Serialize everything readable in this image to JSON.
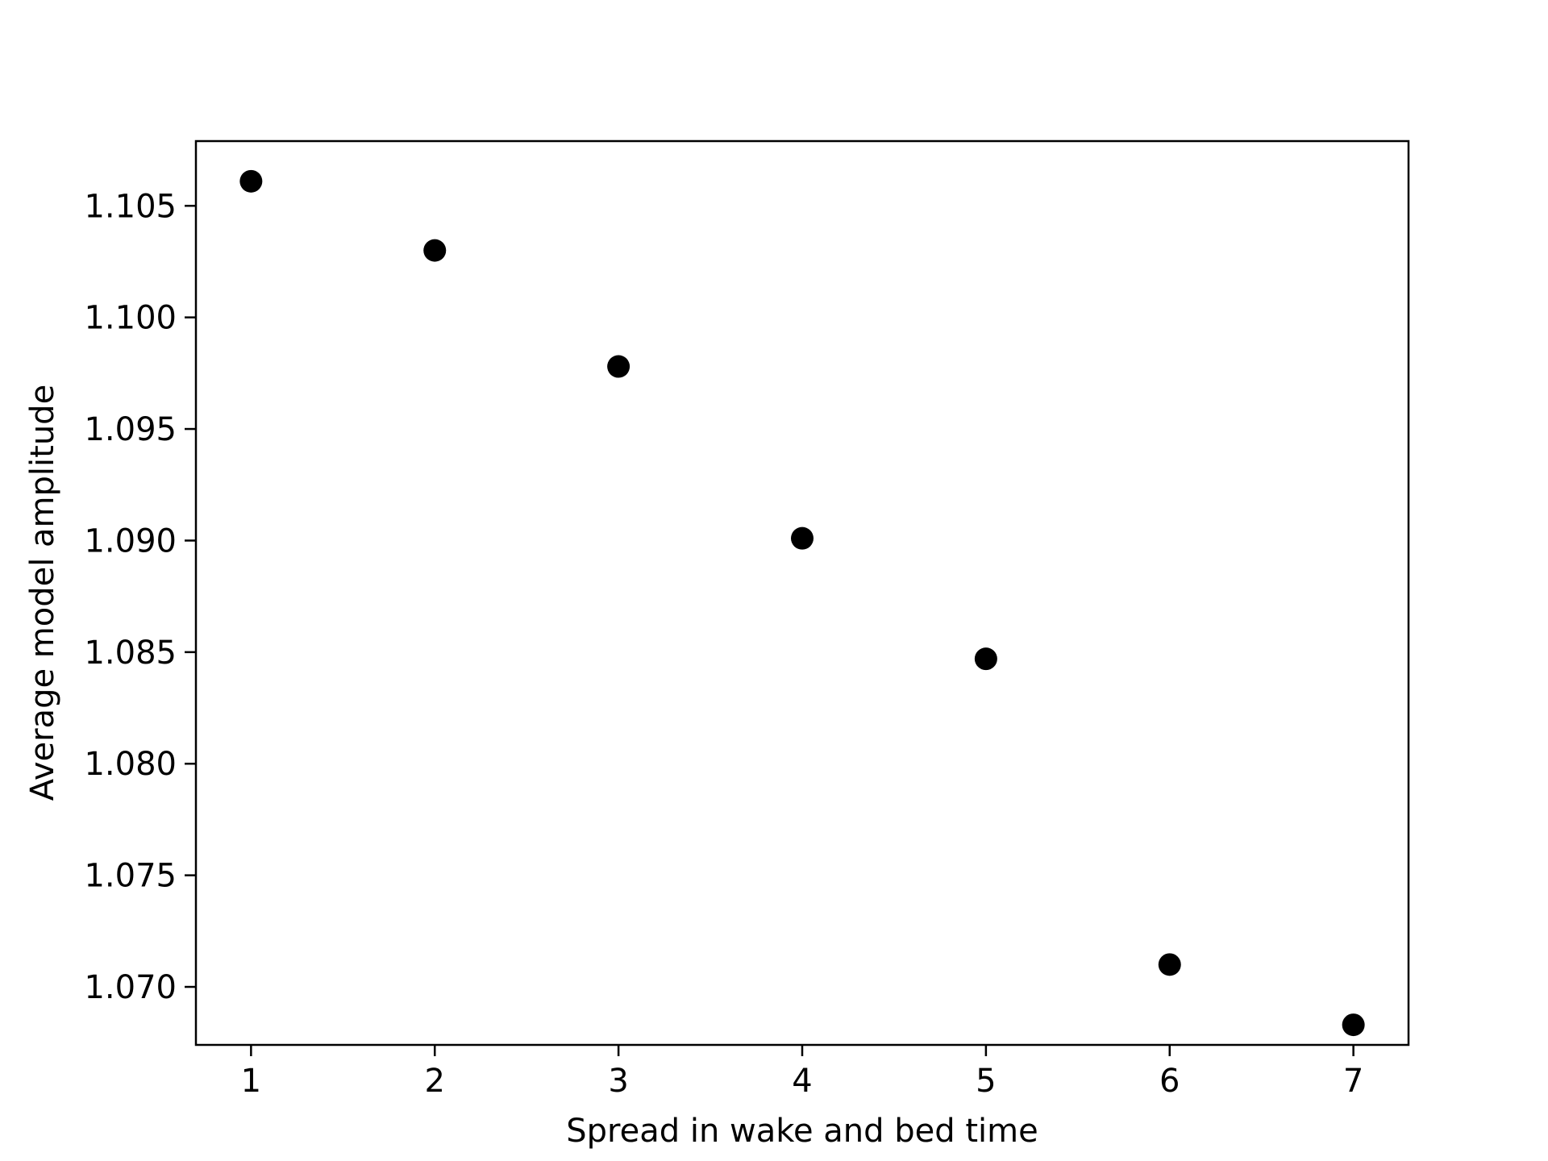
{
  "chart_data": {
    "type": "scatter",
    "title": "",
    "xlabel": "Spread in wake and bed time",
    "ylabel": "Average model amplitude",
    "xlim": [
      0.7,
      7.3
    ],
    "ylim": [
      1.0674,
      1.1079
    ],
    "xticks": [
      1,
      2,
      3,
      4,
      5,
      6,
      7
    ],
    "xtick_labels": [
      "1",
      "2",
      "3",
      "4",
      "5",
      "6",
      "7"
    ],
    "yticks": [
      1.07,
      1.075,
      1.08,
      1.085,
      1.09,
      1.095,
      1.1,
      1.105
    ],
    "ytick_labels": [
      "1.070",
      "1.075",
      "1.080",
      "1.085",
      "1.090",
      "1.095",
      "1.100",
      "1.105"
    ],
    "grid": false,
    "marker_color": "#000000",
    "x": [
      1,
      2,
      3,
      4,
      5,
      6,
      7
    ],
    "y": [
      1.1061,
      1.103,
      1.0978,
      1.0901,
      1.0847,
      1.071,
      1.0683
    ]
  }
}
